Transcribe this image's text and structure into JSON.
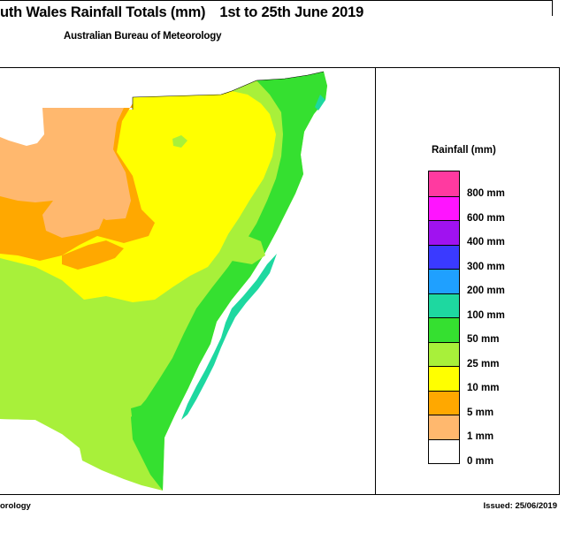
{
  "header": {
    "title": "uth Wales Rainfall Totals (mm)",
    "date_range": "1st to 25th June 2019",
    "subtitle": "Australian Bureau of Meteorology"
  },
  "legend": {
    "title": "Rainfall (mm)",
    "items": [
      {
        "label": "800 mm",
        "color": "#ff3aa0"
      },
      {
        "label": "600 mm",
        "color": "#ff14ff"
      },
      {
        "label": "400 mm",
        "color": "#a012f0"
      },
      {
        "label": "300 mm",
        "color": "#3a3aff"
      },
      {
        "label": "200 mm",
        "color": "#1fa0ff"
      },
      {
        "label": "100 mm",
        "color": "#1ed8a0"
      },
      {
        "label": "50 mm",
        "color": "#35e030"
      },
      {
        "label": "25 mm",
        "color": "#a8f03a"
      },
      {
        "label": "10 mm",
        "color": "#ffff00"
      },
      {
        "label": "5 mm",
        "color": "#ffa800"
      },
      {
        "label": "1 mm",
        "color": "#ffb86e"
      },
      {
        "label": "0 mm",
        "color": "#ffffff"
      }
    ]
  },
  "footer": {
    "left_text": "orology",
    "issued": "Issued: 25/06/2019"
  }
}
